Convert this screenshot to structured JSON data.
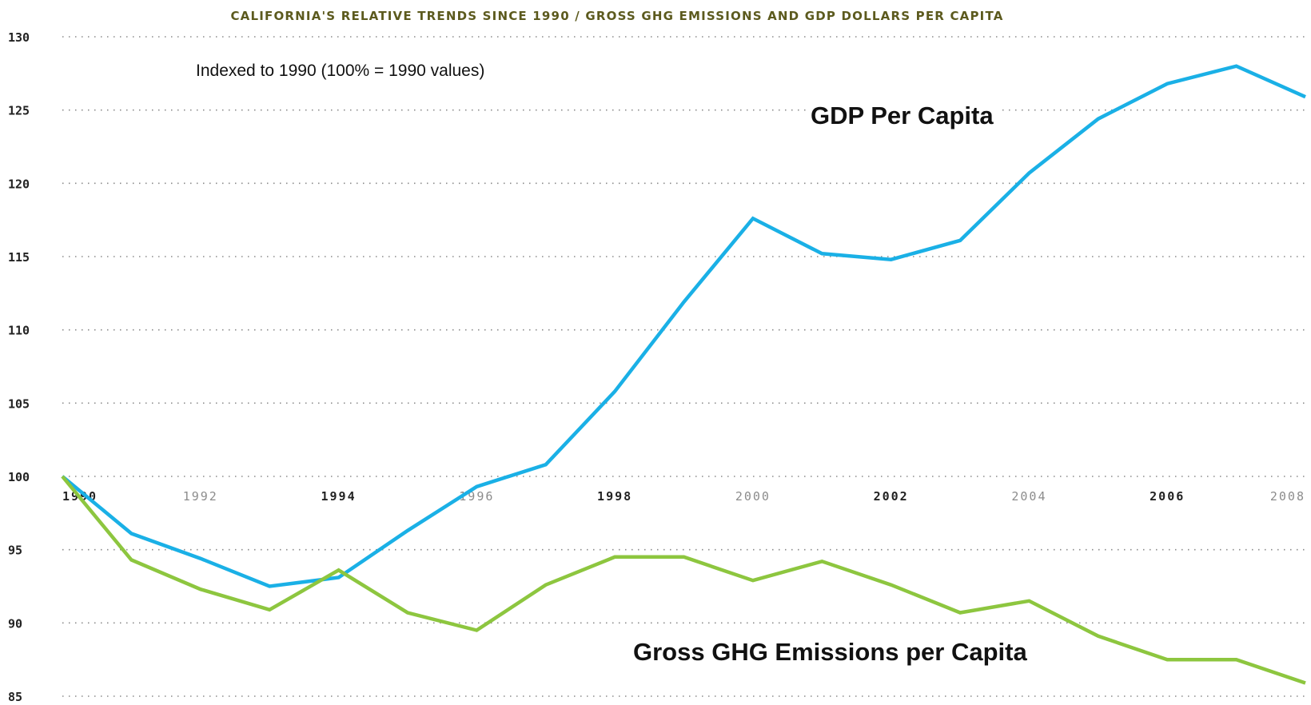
{
  "chart_data": {
    "type": "line",
    "title": "CALIFORNIA'S RELATIVE TRENDS SINCE 1990 / GROSS GHG EMISSIONS AND GDP DOLLARS PER CAPITA",
    "subtitle": "Indexed to 1990 (100% = 1990 values)",
    "xlabel": "",
    "ylabel": "",
    "xlim": [
      1990,
      2008
    ],
    "ylim": [
      85,
      130
    ],
    "yticks": [
      85,
      90,
      95,
      100,
      105,
      110,
      115,
      120,
      125,
      130
    ],
    "xticks": [
      {
        "label": "1990",
        "emphasis": true
      },
      {
        "label": "1992",
        "emphasis": false
      },
      {
        "label": "1994",
        "emphasis": true
      },
      {
        "label": "1996",
        "emphasis": false
      },
      {
        "label": "1998",
        "emphasis": true
      },
      {
        "label": "2000",
        "emphasis": false
      },
      {
        "label": "2002",
        "emphasis": true
      },
      {
        "label": "2004",
        "emphasis": false
      },
      {
        "label": "2006",
        "emphasis": true
      },
      {
        "label": "2008",
        "emphasis": false
      }
    ],
    "grid": true,
    "x": [
      1990,
      1991,
      1992,
      1993,
      1994,
      1995,
      1996,
      1997,
      1998,
      1999,
      2000,
      2001,
      2002,
      2003,
      2004,
      2005,
      2006,
      2007,
      2008
    ],
    "series": [
      {
        "name": "GDP Per Capita",
        "color": "#1ab0e6",
        "values": [
          100.0,
          96.1,
          94.4,
          92.5,
          93.1,
          96.3,
          99.3,
          100.8,
          105.8,
          111.9,
          117.6,
          115.2,
          114.8,
          116.1,
          120.7,
          124.4,
          126.8,
          128.0,
          125.9
        ]
      },
      {
        "name": "Gross GHG Emissions per Capita",
        "color": "#8dc63f",
        "values": [
          100.0,
          94.3,
          92.3,
          90.9,
          93.6,
          90.7,
          89.5,
          92.6,
          94.5,
          94.5,
          92.9,
          94.2,
          92.6,
          90.7,
          91.5,
          89.1,
          87.5,
          87.5,
          85.9
        ]
      }
    ]
  },
  "colors": {
    "title": "#5c5a1e",
    "axis_text": "#222222",
    "xtick_emphasis": "#222222",
    "xtick_muted": "#8c8c8c",
    "grid": "#8a8a8a",
    "background": "#ffffff"
  }
}
